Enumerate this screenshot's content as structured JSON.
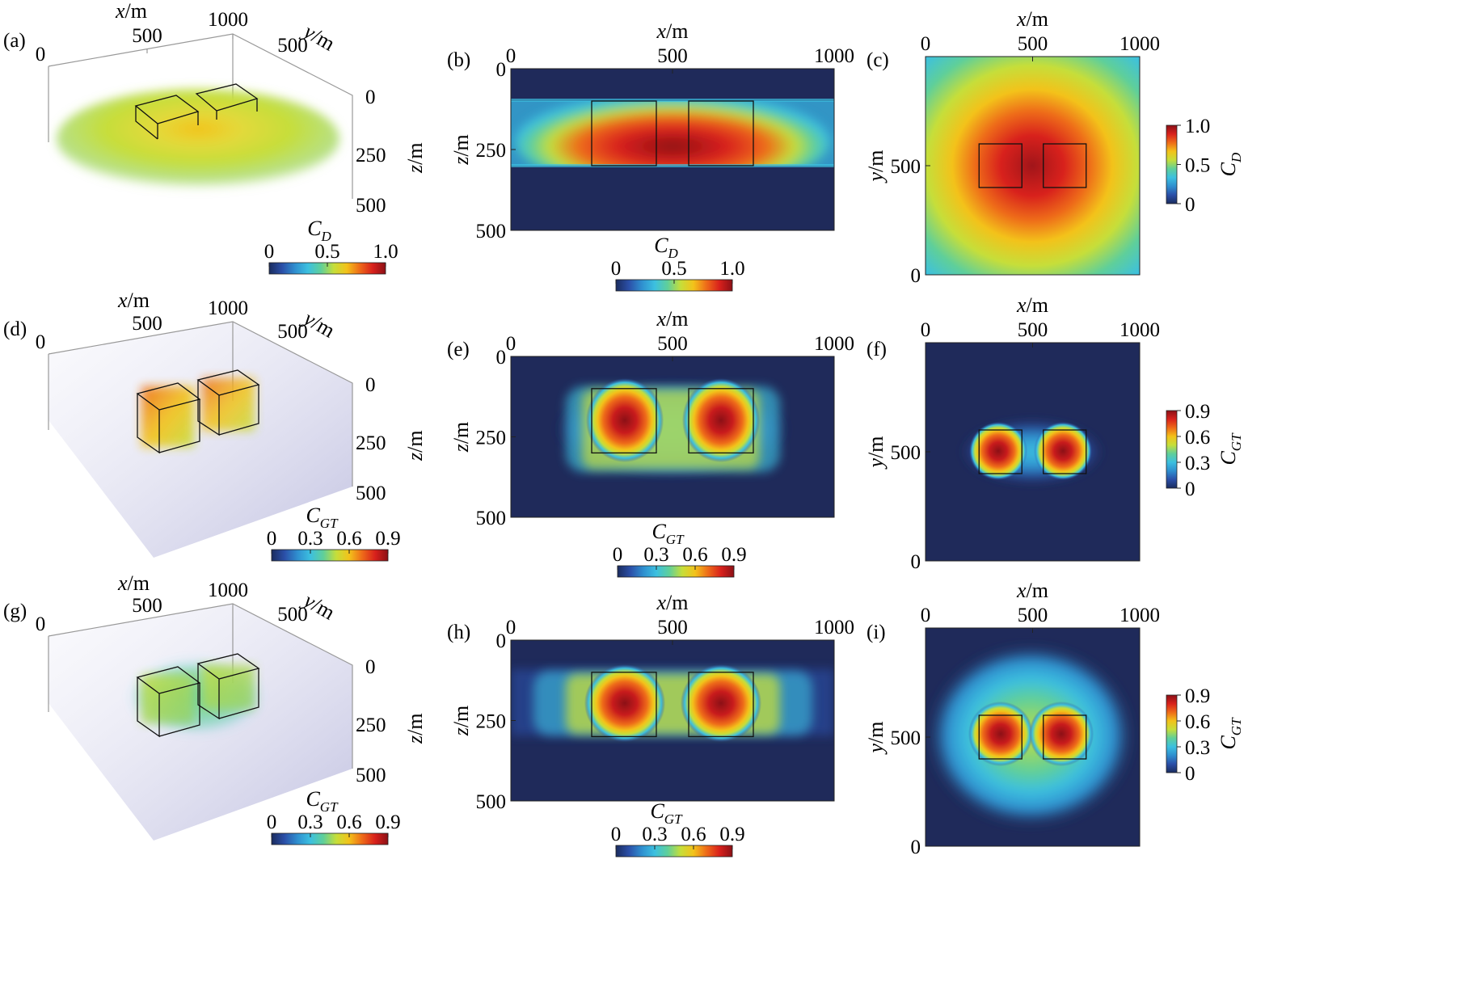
{
  "figure": {
    "panel_labels": [
      "(a)",
      "(b)",
      "(c)",
      "(d)",
      "(e)",
      "(f)",
      "(g)",
      "(h)",
      "(i)"
    ]
  },
  "colormap": [
    "#1a2c5e",
    "#2b4fa8",
    "#2f8fcf",
    "#3cc0e0",
    "#5fcf9a",
    "#c6de3a",
    "#f3c21a",
    "#ee6b19",
    "#d8211c",
    "#8c1016"
  ],
  "colors": {
    "background_field": "#1f2a5a",
    "volume_fog": "#c8c8e6",
    "box_outline": "#111111"
  },
  "chart_data": [
    {
      "panel": "(a)",
      "type": "heatmap",
      "view": "3d-volume",
      "xlabel": "x/m",
      "ylabel": "y/m",
      "zlabel": "z/m",
      "x_ticks": [
        "0",
        "500",
        "1000"
      ],
      "y_ticks": [
        "500"
      ],
      "z_ticks": [
        "0",
        "250",
        "500"
      ],
      "xlim": [
        0,
        1000
      ],
      "ylim": [
        0,
        1000
      ],
      "zlim": [
        0,
        500
      ],
      "colorbar": {
        "label": "C_D",
        "symbol": "C",
        "sub": "D",
        "ticks": [
          "0",
          "0.5",
          "1.0"
        ],
        "range": [
          0,
          1.0
        ],
        "orientation": "horizontal"
      }
    },
    {
      "panel": "(b)",
      "type": "heatmap",
      "view": "x-z section",
      "xlabel": "x/m",
      "ylabel": "z/m",
      "x_ticks": [
        "0",
        "500",
        "1000"
      ],
      "y_ticks": [
        "0",
        "250",
        "500"
      ],
      "xlim": [
        0,
        1000
      ],
      "ylim": [
        0,
        500
      ],
      "colorbar": {
        "label": "C_D",
        "symbol": "C",
        "sub": "D",
        "ticks": [
          "0",
          "0.5",
          "1.0"
        ],
        "range": [
          0,
          1.0
        ],
        "orientation": "horizontal"
      },
      "anomaly_boxes": [
        {
          "x": [
            250,
            450
          ],
          "z": [
            100,
            300
          ]
        },
        {
          "x": [
            550,
            750
          ],
          "z": [
            100,
            300
          ]
        }
      ]
    },
    {
      "panel": "(c)",
      "type": "heatmap",
      "view": "x-y plan",
      "xlabel": "x/m",
      "ylabel": "y/m",
      "x_ticks": [
        "0",
        "500",
        "1000"
      ],
      "y_ticks": [
        "0",
        "500"
      ],
      "xlim": [
        0,
        1000
      ],
      "ylim": [
        0,
        1000
      ],
      "colorbar": {
        "label": "C_D",
        "symbol": "C",
        "sub": "D",
        "ticks": [
          "0",
          "0.5",
          "1.0"
        ],
        "range": [
          0,
          1.0
        ],
        "orientation": "vertical"
      },
      "anomaly_boxes": [
        {
          "x": [
            250,
            450
          ],
          "y": [
            400,
            600
          ]
        },
        {
          "x": [
            550,
            750
          ],
          "y": [
            400,
            600
          ]
        }
      ]
    },
    {
      "panel": "(d)",
      "type": "heatmap",
      "view": "3d-volume",
      "xlabel": "x/m",
      "ylabel": "y/m",
      "zlabel": "z/m",
      "x_ticks": [
        "0",
        "500",
        "1000"
      ],
      "y_ticks": [
        "500"
      ],
      "z_ticks": [
        "0",
        "250",
        "500"
      ],
      "xlim": [
        0,
        1000
      ],
      "ylim": [
        0,
        1000
      ],
      "zlim": [
        0,
        500
      ],
      "colorbar": {
        "label": "C_GT",
        "symbol": "C",
        "sub": "GT",
        "ticks": [
          "0",
          "0.3",
          "0.6",
          "0.9"
        ],
        "range": [
          0,
          0.9
        ],
        "orientation": "horizontal"
      }
    },
    {
      "panel": "(e)",
      "type": "heatmap",
      "view": "x-z section",
      "xlabel": "x/m",
      "ylabel": "z/m",
      "x_ticks": [
        "0",
        "500",
        "1000"
      ],
      "y_ticks": [
        "0",
        "250",
        "500"
      ],
      "xlim": [
        0,
        1000
      ],
      "ylim": [
        0,
        500
      ],
      "colorbar": {
        "label": "C_GT",
        "symbol": "C",
        "sub": "GT",
        "ticks": [
          "0",
          "0.3",
          "0.6",
          "0.9"
        ],
        "range": [
          0,
          0.9
        ],
        "orientation": "horizontal"
      },
      "anomaly_boxes": [
        {
          "x": [
            250,
            450
          ],
          "z": [
            100,
            300
          ]
        },
        {
          "x": [
            550,
            750
          ],
          "z": [
            100,
            300
          ]
        }
      ]
    },
    {
      "panel": "(f)",
      "type": "heatmap",
      "view": "x-y plan",
      "xlabel": "x/m",
      "ylabel": "y/m",
      "x_ticks": [
        "0",
        "500",
        "1000"
      ],
      "y_ticks": [
        "0",
        "500"
      ],
      "xlim": [
        0,
        1000
      ],
      "ylim": [
        0,
        1000
      ],
      "colorbar": {
        "label": "C_GT",
        "symbol": "C",
        "sub": "GT",
        "ticks": [
          "0",
          "0.3",
          "0.6",
          "0.9"
        ],
        "range": [
          0,
          0.9
        ],
        "orientation": "vertical"
      },
      "anomaly_boxes": [
        {
          "x": [
            250,
            450
          ],
          "y": [
            400,
            600
          ]
        },
        {
          "x": [
            550,
            750
          ],
          "y": [
            400,
            600
          ]
        }
      ]
    },
    {
      "panel": "(g)",
      "type": "heatmap",
      "view": "3d-volume",
      "xlabel": "x/m",
      "ylabel": "y/m",
      "zlabel": "z/m",
      "x_ticks": [
        "0",
        "500",
        "1000"
      ],
      "y_ticks": [
        "500"
      ],
      "z_ticks": [
        "0",
        "250",
        "500"
      ],
      "xlim": [
        0,
        1000
      ],
      "ylim": [
        0,
        1000
      ],
      "zlim": [
        0,
        500
      ],
      "colorbar": {
        "label": "C_GT",
        "symbol": "C",
        "sub": "GT",
        "ticks": [
          "0",
          "0.3",
          "0.6",
          "0.9"
        ],
        "range": [
          0,
          0.9
        ],
        "orientation": "horizontal"
      }
    },
    {
      "panel": "(h)",
      "type": "heatmap",
      "view": "x-z section",
      "xlabel": "x/m",
      "ylabel": "z/m",
      "x_ticks": [
        "0",
        "500",
        "1000"
      ],
      "y_ticks": [
        "0",
        "250",
        "500"
      ],
      "xlim": [
        0,
        1000
      ],
      "ylim": [
        0,
        500
      ],
      "colorbar": {
        "label": "C_GT",
        "symbol": "C",
        "sub": "GT",
        "ticks": [
          "0",
          "0.3",
          "0.6",
          "0.9"
        ],
        "range": [
          0,
          0.9
        ],
        "orientation": "horizontal"
      },
      "anomaly_boxes": [
        {
          "x": [
            250,
            450
          ],
          "z": [
            100,
            300
          ]
        },
        {
          "x": [
            550,
            750
          ],
          "z": [
            100,
            300
          ]
        }
      ]
    },
    {
      "panel": "(i)",
      "type": "heatmap",
      "view": "x-y plan",
      "xlabel": "x/m",
      "ylabel": "y/m",
      "x_ticks": [
        "0",
        "500",
        "1000"
      ],
      "y_ticks": [
        "0",
        "500"
      ],
      "xlim": [
        0,
        1000
      ],
      "ylim": [
        0,
        1000
      ],
      "colorbar": {
        "label": "C_GT",
        "symbol": "C",
        "sub": "GT",
        "ticks": [
          "0",
          "0.3",
          "0.6",
          "0.9"
        ],
        "range": [
          0,
          0.9
        ],
        "orientation": "vertical"
      },
      "anomaly_boxes": [
        {
          "x": [
            250,
            450
          ],
          "y": [
            400,
            600
          ]
        },
        {
          "x": [
            550,
            750
          ],
          "y": [
            400,
            600
          ]
        }
      ]
    }
  ]
}
